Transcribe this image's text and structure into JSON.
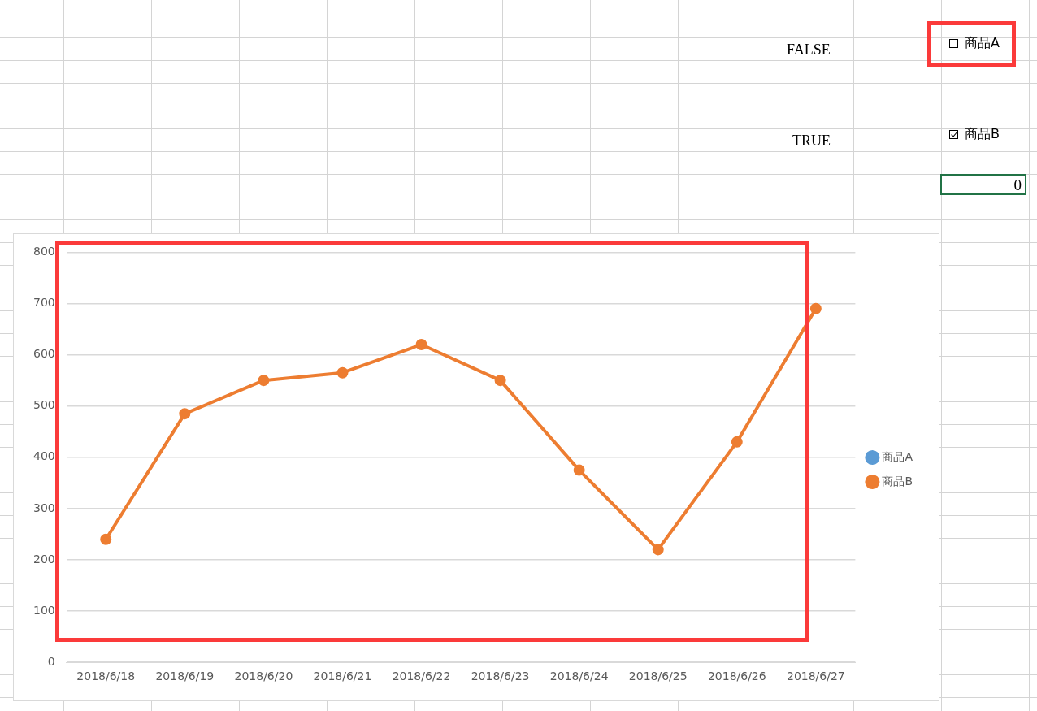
{
  "chart_data": {
    "type": "line",
    "categories": [
      "2018/6/18",
      "2018/6/19",
      "2018/6/20",
      "2018/6/21",
      "2018/6/22",
      "2018/6/23",
      "2018/6/24",
      "2018/6/25",
      "2018/6/26",
      "2018/6/27"
    ],
    "series": [
      {
        "name": "商品A",
        "color": "#5b9bd5",
        "values": [
          null,
          null,
          null,
          null,
          null,
          null,
          null,
          null,
          null,
          null
        ]
      },
      {
        "name": "商品B",
        "color": "#ed7d31",
        "values": [
          240,
          485,
          550,
          565,
          620,
          550,
          375,
          220,
          430,
          690
        ]
      }
    ],
    "ylim": [
      0,
      800
    ],
    "yticks": [
      0,
      100,
      200,
      300,
      400,
      500,
      600,
      700,
      800
    ],
    "grid": "y",
    "legend": "right",
    "marker": "circle",
    "line_style": "solid",
    "annotations": [
      "FALSE",
      "商品A",
      "TRUE",
      "商品B",
      "0"
    ]
  }
}
